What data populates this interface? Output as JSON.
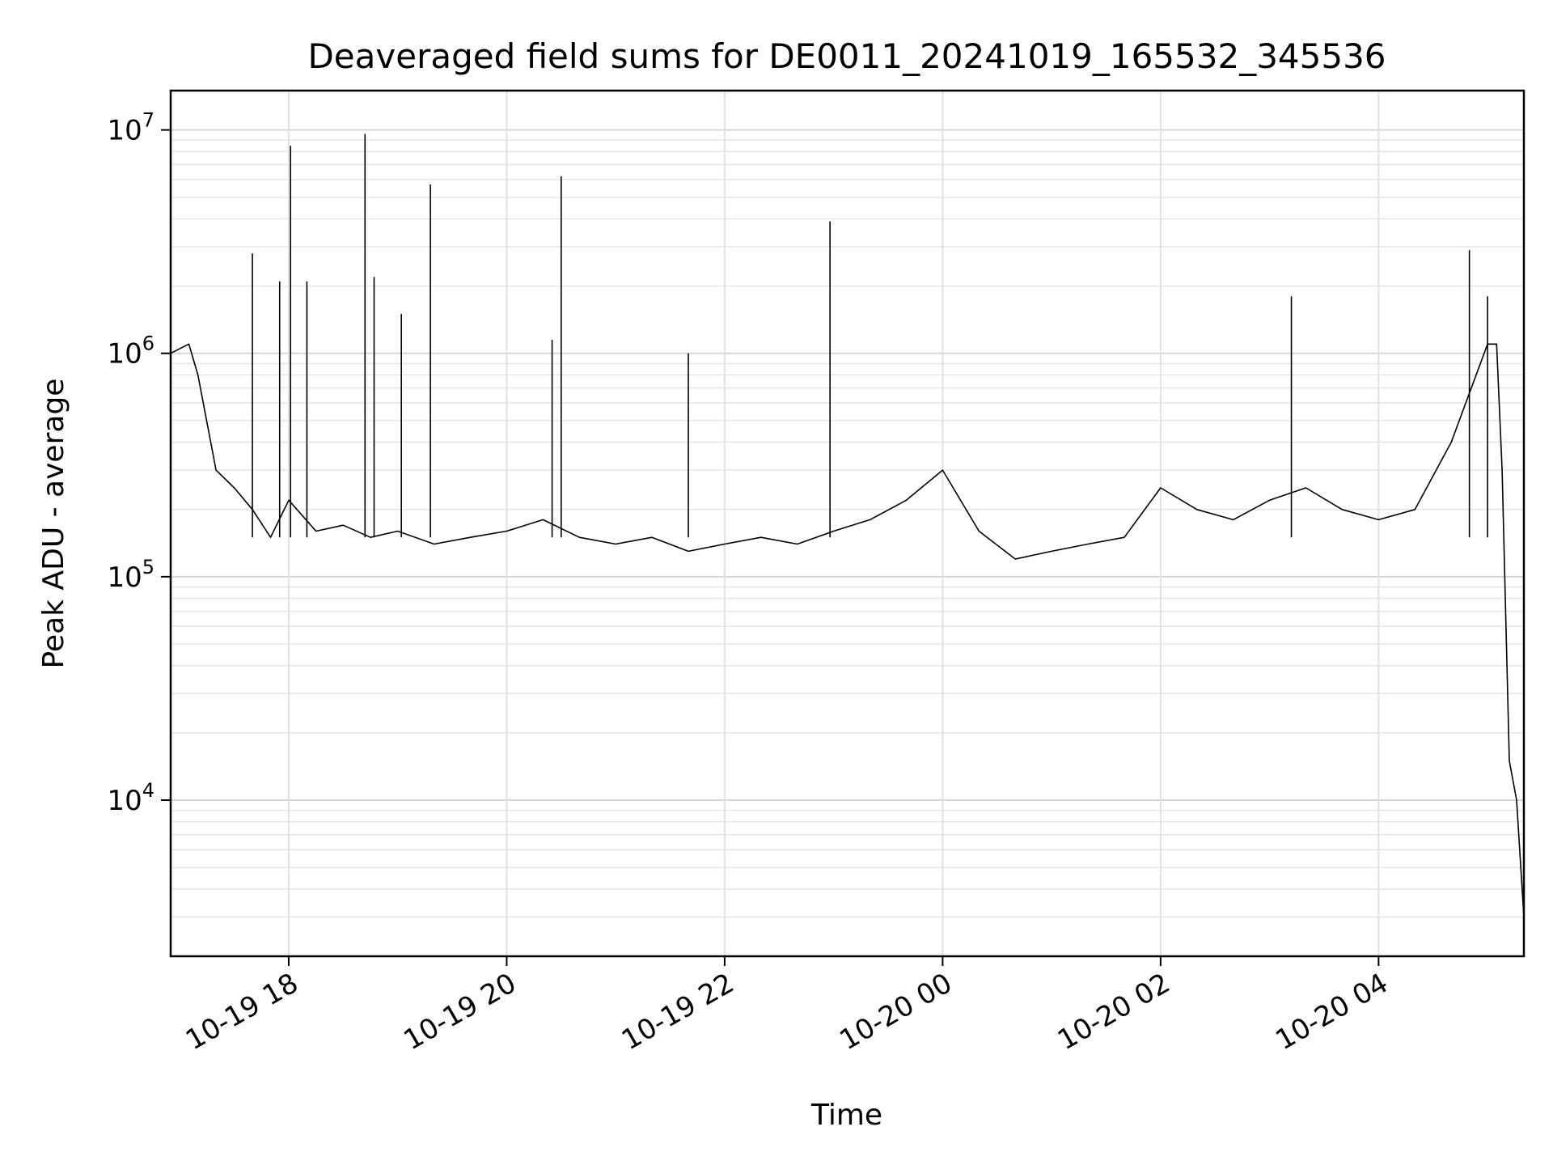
{
  "chart_data": {
    "type": "line",
    "title": "Deaveraged field sums for DE0011_20241019_165532_345536",
    "xlabel": "Time",
    "ylabel": "Peak ADU - average",
    "xlim": [
      "2024-10-19 16:55",
      "2024-10-20 05:20"
    ],
    "ylim": [
      2000,
      15000000
    ],
    "yscale": "log",
    "grid": true,
    "x_ticks": [
      {
        "value": "2024-10-19 18:00",
        "label": "10-19 18"
      },
      {
        "value": "2024-10-19 20:00",
        "label": "10-19 20"
      },
      {
        "value": "2024-10-19 22:00",
        "label": "10-19 22"
      },
      {
        "value": "2024-10-20 00:00",
        "label": "10-20 00"
      },
      {
        "value": "2024-10-20 02:00",
        "label": "10-20 02"
      },
      {
        "value": "2024-10-20 04:00",
        "label": "10-20 04"
      }
    ],
    "y_ticks": [
      {
        "value": 10000,
        "base": "10",
        "exp": "4"
      },
      {
        "value": 100000,
        "base": "10",
        "exp": "5"
      },
      {
        "value": 1000000,
        "base": "10",
        "exp": "6"
      },
      {
        "value": 10000000,
        "base": "10",
        "exp": "7"
      }
    ],
    "series": [
      {
        "color": "#000000",
        "x": [
          "2024-10-19 16:55",
          "2024-10-19 17:05",
          "2024-10-19 17:10",
          "2024-10-19 17:20",
          "2024-10-19 17:30",
          "2024-10-19 17:40",
          "2024-10-19 17:50",
          "2024-10-19 18:00",
          "2024-10-19 18:15",
          "2024-10-19 18:30",
          "2024-10-19 18:45",
          "2024-10-19 19:00",
          "2024-10-19 19:20",
          "2024-10-19 19:40",
          "2024-10-19 20:00",
          "2024-10-19 20:20",
          "2024-10-19 20:40",
          "2024-10-19 21:00",
          "2024-10-19 21:20",
          "2024-10-19 21:40",
          "2024-10-19 22:00",
          "2024-10-19 22:20",
          "2024-10-19 22:40",
          "2024-10-19 23:00",
          "2024-10-19 23:20",
          "2024-10-19 23:40",
          "2024-10-20 00:00",
          "2024-10-20 00:20",
          "2024-10-20 00:40",
          "2024-10-20 01:00",
          "2024-10-20 01:20",
          "2024-10-20 01:40",
          "2024-10-20 02:00",
          "2024-10-20 02:20",
          "2024-10-20 02:40",
          "2024-10-20 03:00",
          "2024-10-20 03:20",
          "2024-10-20 03:40",
          "2024-10-20 04:00",
          "2024-10-20 04:20",
          "2024-10-20 04:40",
          "2024-10-20 05:00",
          "2024-10-20 05:05",
          "2024-10-20 05:08",
          "2024-10-20 05:12",
          "2024-10-20 05:16",
          "2024-10-20 05:20"
        ],
        "y": [
          1000000,
          1100000,
          800000,
          300000,
          250000,
          200000,
          150000,
          220000,
          160000,
          170000,
          150000,
          160000,
          140000,
          150000,
          160000,
          180000,
          150000,
          140000,
          150000,
          130000,
          140000,
          150000,
          140000,
          160000,
          180000,
          220000,
          300000,
          160000,
          120000,
          130000,
          140000,
          150000,
          250000,
          200000,
          180000,
          220000,
          250000,
          200000,
          180000,
          200000,
          400000,
          1100000,
          1100000,
          300000,
          15000,
          10000,
          3000
        ]
      }
    ],
    "spikes": [
      {
        "x": "2024-10-19 17:40",
        "y": 2800000
      },
      {
        "x": "2024-10-19 17:55",
        "y": 2100000
      },
      {
        "x": "2024-10-19 18:01",
        "y": 8500000
      },
      {
        "x": "2024-10-19 18:10",
        "y": 2100000
      },
      {
        "x": "2024-10-19 18:42",
        "y": 9600000
      },
      {
        "x": "2024-10-19 18:47",
        "y": 2200000
      },
      {
        "x": "2024-10-19 19:02",
        "y": 1500000
      },
      {
        "x": "2024-10-19 19:18",
        "y": 5700000
      },
      {
        "x": "2024-10-19 20:25",
        "y": 1150000
      },
      {
        "x": "2024-10-19 20:30",
        "y": 6200000
      },
      {
        "x": "2024-10-19 21:40",
        "y": 1000000
      },
      {
        "x": "2024-10-19 22:58",
        "y": 3900000
      },
      {
        "x": "2024-10-20 03:12",
        "y": 1800000
      },
      {
        "x": "2024-10-20 04:50",
        "y": 2900000
      },
      {
        "x": "2024-10-20 05:00",
        "y": 1800000
      }
    ]
  }
}
